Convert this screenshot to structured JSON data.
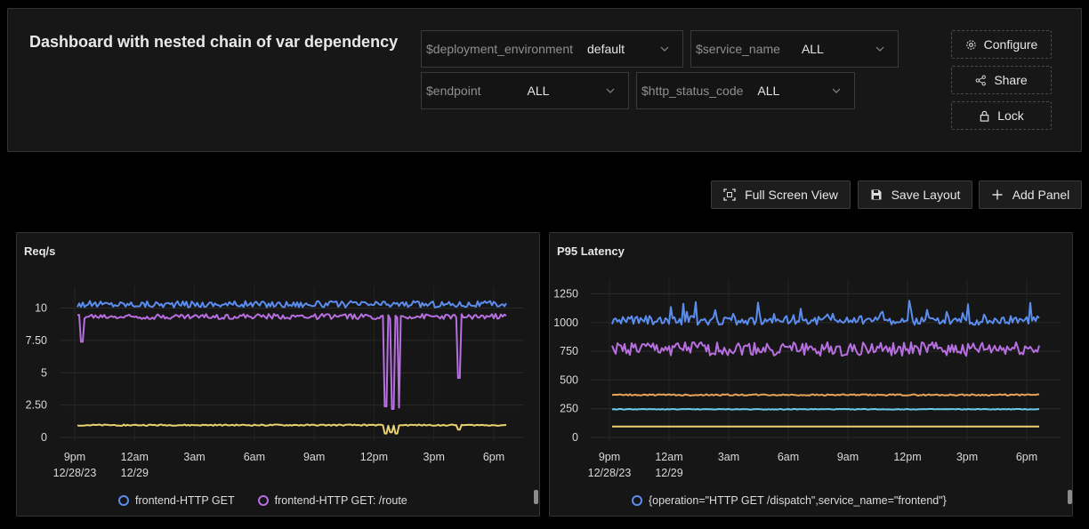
{
  "dashboard": {
    "title": "Dashboard with nested chain of var dependency",
    "variables": [
      {
        "name": "$deployment_environment",
        "value": "default"
      },
      {
        "name": "$service_name",
        "value": "ALL"
      },
      {
        "name": "$endpoint",
        "value": "ALL"
      },
      {
        "name": "$http_status_code",
        "value": "ALL"
      }
    ],
    "actions": {
      "configure": "Configure",
      "share": "Share",
      "lock": "Lock"
    }
  },
  "toolbar": {
    "full_screen": "Full Screen View",
    "save_layout": "Save Layout",
    "add_panel": "Add Panel"
  },
  "colors": {
    "blue": "#5b8def",
    "purple": "#b76fe0",
    "yellow": "#e9d26f",
    "orange": "#e8a35b",
    "cyan": "#6cc9ea"
  },
  "chart_data": [
    {
      "type": "line",
      "title": "Req/s",
      "x_ticks": [
        "9pm\n12/28/23",
        "12am\n12/29",
        "3am",
        "6am",
        "9am",
        "12pm",
        "3pm",
        "6pm"
      ],
      "y_ticks": [
        "10",
        "7.50",
        "5",
        "2.50",
        "0"
      ],
      "ylim": [
        0,
        11
      ],
      "grid": true,
      "series": [
        {
          "name": "frontend-HTTP GET",
          "color": "#5b8def",
          "base": 10.3,
          "noise": 0.25,
          "dips": []
        },
        {
          "name": "frontend-HTTP GET: /route",
          "color": "#b76fe0",
          "base": 9.35,
          "noise": 0.2,
          "dips": [
            [
              0.01,
              7.4
            ],
            [
              0.72,
              2.4
            ],
            [
              0.735,
              2.2
            ],
            [
              0.75,
              2.3
            ],
            [
              0.89,
              4.6
            ]
          ]
        },
        {
          "name": "",
          "color": "#e9d26f",
          "base": 0.95,
          "noise": 0.05,
          "dips": [
            [
              0.72,
              0.3
            ],
            [
              0.73,
              0.4
            ],
            [
              0.745,
              0.3
            ],
            [
              0.89,
              0.6
            ]
          ]
        }
      ],
      "legend": [
        "frontend-HTTP GET",
        "frontend-HTTP GET: /route"
      ]
    },
    {
      "type": "line",
      "title": "P95 Latency",
      "x_ticks": [
        "9pm\n12/28/23",
        "12am\n12/29",
        "3am",
        "6am",
        "9am",
        "12pm",
        "3pm",
        "6pm"
      ],
      "y_ticks": [
        "1250",
        "1000",
        "750",
        "500",
        "250",
        "0"
      ],
      "ylim": [
        0,
        1300
      ],
      "grid": true,
      "series": [
        {
          "name": "{operation=\"HTTP GET /dispatch\",service_name=\"frontend\"}",
          "color": "#5b8def",
          "base": 1020,
          "noise": 40,
          "spiky": 150
        },
        {
          "name": "",
          "color": "#b76fe0",
          "base": 770,
          "noise": 60,
          "spiky": 0
        },
        {
          "name": "",
          "color": "#e8a35b",
          "base": 370,
          "noise": 6,
          "spiky": 0
        },
        {
          "name": "",
          "color": "#6cc9ea",
          "base": 245,
          "noise": 3,
          "spiky": 0
        },
        {
          "name": "",
          "color": "#e9d26f",
          "base": 95,
          "noise": 0,
          "spiky": 0
        }
      ],
      "legend": [
        "{operation=\"HTTP GET /dispatch\",service_name=\"frontend\"}"
      ]
    }
  ]
}
